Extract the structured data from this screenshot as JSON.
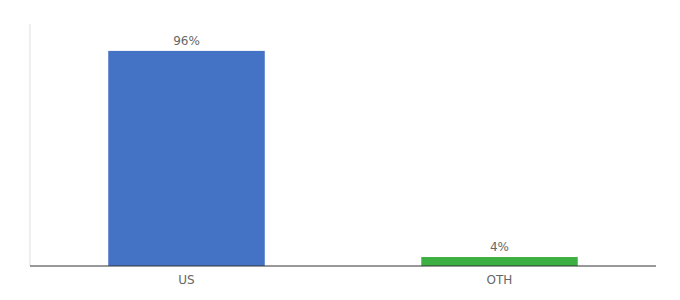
{
  "chart_data": {
    "type": "bar",
    "categories": [
      "US",
      "OTH"
    ],
    "values": [
      96,
      4
    ],
    "colors": [
      "#4472c4",
      "#3cb043"
    ],
    "data_labels": true,
    "value_labels": [
      "96%",
      "4%"
    ],
    "ylim": [
      0,
      108
    ],
    "grid": false,
    "tick_labels": "x"
  }
}
